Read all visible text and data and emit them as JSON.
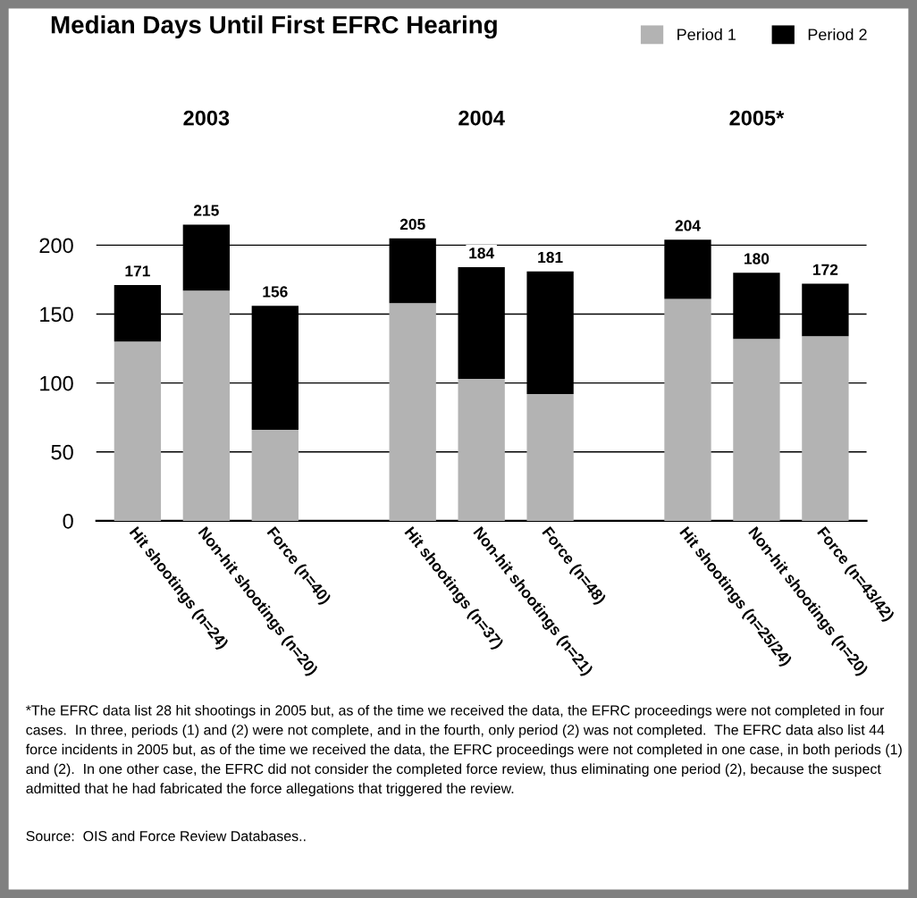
{
  "chart_data": {
    "type": "bar",
    "title": "Median Days Until First EFRC Hearing",
    "categories": [
      "Hit shootings (n=24)",
      "Non-hit shootings (n=20)",
      "Force (n=40)",
      null,
      "Hit shootings (n=37)",
      "Non-hit shootings (n=21)",
      "Force (n=48)",
      null,
      "Hit shootings (n=25/24)",
      "Non-hit shootings (n=20)",
      "Force (n=43/42)"
    ],
    "series": [
      {
        "name": "Period 1",
        "color": "#b3b3b3",
        "values": [
          130,
          167,
          66,
          null,
          158,
          103,
          92,
          null,
          161,
          132,
          134
        ]
      },
      {
        "name": "Period 2",
        "color": "#000000",
        "values": [
          41,
          48,
          90,
          null,
          47,
          81,
          89,
          null,
          43,
          48,
          38
        ]
      }
    ],
    "stacked": true,
    "totals": [
      "171",
      "215",
      "156",
      null,
      "205",
      "184",
      "181",
      null,
      "204",
      "180",
      "172"
    ],
    "ylim": [
      0,
      215
    ],
    "yticks": [
      0,
      50,
      100,
      150,
      200
    ],
    "grid": "y",
    "legend": "top right",
    "annotations": [
      "2003",
      "2004",
      "2005*",
      "*The EFRC data list 28 hit shootings in 2005 but, as of the time we received the data, the EFRC proceedings were not completed in four cases.  In three, periods (1) and (2) were not complete, and in the fourth, only period (2) was not completed.  The EFRC data also list 44 force incidents in 2005 but, as of the time we received the data, the EFRC proceedings were not completed in one case, in both periods (1) and (2).  In one other case, the EFRC did not consider the completed force review, thus eliminating one period (2), because the suspect admitted that he had fabricated the force allegations that triggered the review.",
      "Source:  OIS and Force Review Databases.."
    ]
  }
}
